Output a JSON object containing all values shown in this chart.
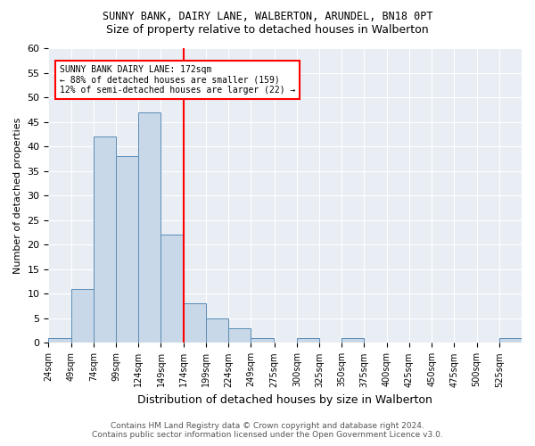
{
  "title1": "SUNNY BANK, DAIRY LANE, WALBERTON, ARUNDEL, BN18 0PT",
  "title2": "Size of property relative to detached houses in Walberton",
  "xlabel": "Distribution of detached houses by size in Walberton",
  "ylabel": "Number of detached properties",
  "bins": [
    24,
    49,
    74,
    99,
    124,
    149,
    174,
    199,
    224,
    249,
    275,
    300,
    325,
    350,
    375,
    400,
    425,
    450,
    475,
    500,
    525,
    550
  ],
  "counts": [
    1,
    11,
    42,
    38,
    47,
    22,
    8,
    5,
    3,
    1,
    0,
    1,
    0,
    1,
    0,
    0,
    0,
    0,
    0,
    0,
    1
  ],
  "bar_color": "#c8d8e8",
  "bar_edgecolor": "#5b8db8",
  "vline_x": 174,
  "vline_color": "red",
  "annotation_text": "SUNNY BANK DAIRY LANE: 172sqm\n← 88% of detached houses are smaller (159)\n12% of semi-detached houses are larger (22) →",
  "annotation_box_color": "white",
  "annotation_box_edgecolor": "red",
  "ylim": [
    0,
    60
  ],
  "yticks": [
    0,
    5,
    10,
    15,
    20,
    25,
    30,
    35,
    40,
    45,
    50,
    55,
    60
  ],
  "tick_labels": [
    "24sqm",
    "49sqm",
    "74sqm",
    "99sqm",
    "124sqm",
    "149sqm",
    "174sqm",
    "199sqm",
    "224sqm",
    "249sqm",
    "275sqm",
    "300sqm",
    "325sqm",
    "350sqm",
    "375sqm",
    "400sqm",
    "425sqm",
    "450sqm",
    "475sqm",
    "500sqm",
    "525sqm"
  ],
  "footer1": "Contains HM Land Registry data © Crown copyright and database right 2024.",
  "footer2": "Contains public sector information licensed under the Open Government Licence v3.0.",
  "bg_color": "#ffffff",
  "plot_bg_color": "#e8eef4"
}
